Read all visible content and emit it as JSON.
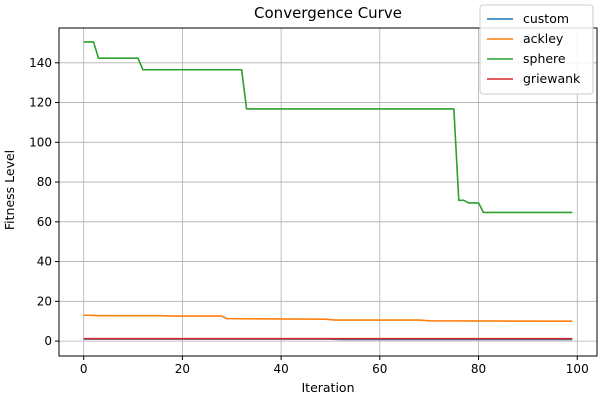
{
  "chart_data": {
    "type": "line",
    "title": "Convergence Curve",
    "xlabel": "Iteration",
    "ylabel": "Fitness Level",
    "xlim": [
      -5,
      104
    ],
    "ylim": [
      -7.5,
      157.5
    ],
    "xticks": [
      0,
      20,
      40,
      60,
      80,
      100
    ],
    "yticks": [
      0,
      20,
      40,
      60,
      80,
      100,
      120,
      140
    ],
    "grid": true,
    "legend_position": "top-right",
    "series": [
      {
        "name": "custom",
        "color": "#1f77b4",
        "points": [
          [
            0,
            1.0
          ],
          [
            50,
            1.0
          ],
          [
            52,
            0.8
          ],
          [
            99,
            0.8
          ]
        ]
      },
      {
        "name": "ackley",
        "color": "#ff7f0e",
        "points": [
          [
            0,
            13.0
          ],
          [
            2,
            12.9
          ],
          [
            3,
            12.8
          ],
          [
            16,
            12.8
          ],
          [
            18,
            12.6
          ],
          [
            28,
            12.6
          ],
          [
            29,
            11.3
          ],
          [
            49,
            11.0
          ],
          [
            51,
            10.6
          ],
          [
            68,
            10.6
          ],
          [
            70,
            10.2
          ],
          [
            99,
            10.0
          ]
        ]
      },
      {
        "name": "sphere",
        "color": "#2ca02c",
        "points": [
          [
            0,
            150.5
          ],
          [
            2,
            150.5
          ],
          [
            3,
            142.3
          ],
          [
            11,
            142.3
          ],
          [
            12,
            136.5
          ],
          [
            32,
            136.5
          ],
          [
            33,
            116.8
          ],
          [
            75,
            116.8
          ],
          [
            76,
            70.8
          ],
          [
            77,
            70.8
          ],
          [
            78,
            69.5
          ],
          [
            80,
            69.5
          ],
          [
            81,
            64.7
          ],
          [
            99,
            64.7
          ]
        ]
      },
      {
        "name": "griewank",
        "color": "#d62728",
        "points": [
          [
            0,
            1.2
          ],
          [
            99,
            1.2
          ]
        ]
      }
    ]
  }
}
